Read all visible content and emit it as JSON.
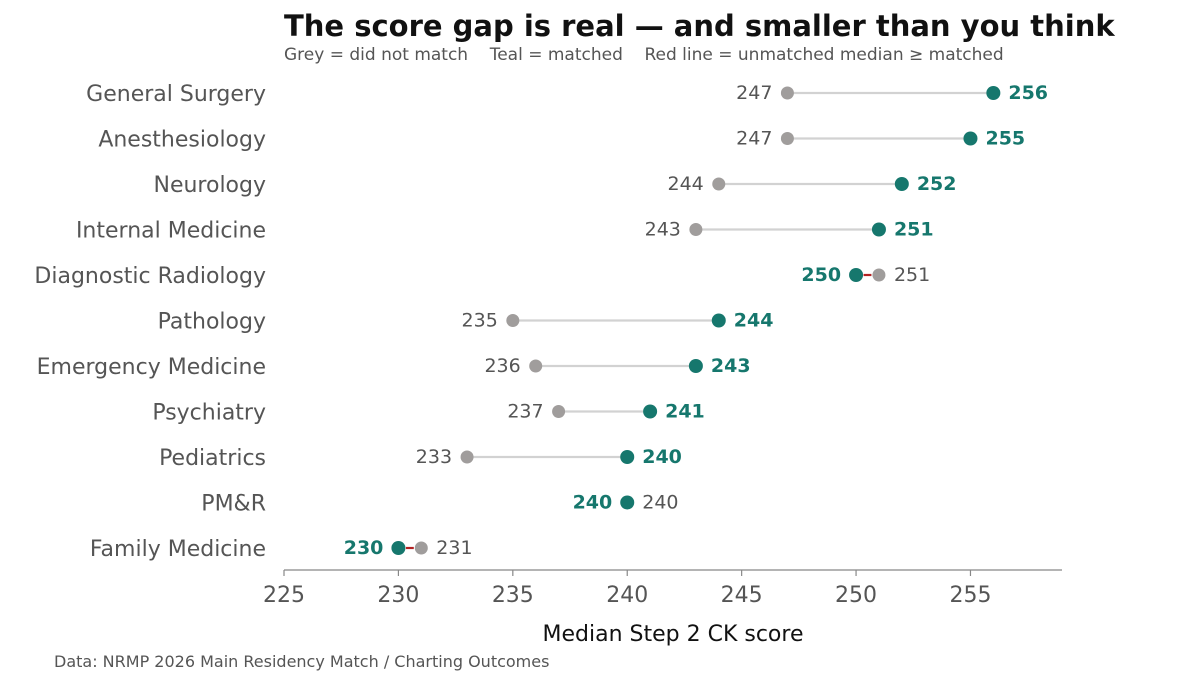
{
  "chart_data": {
    "type": "dumbbell",
    "title": "The score gap is real — and smaller than you think",
    "subtitle": "Grey = did not match    Teal = matched    Red line = unmatched median ≥ matched",
    "xlabel": "Median Step 2 CK score",
    "ylabel": "",
    "xlim": [
      225,
      259
    ],
    "xticks": [
      225,
      230,
      235,
      240,
      245,
      250,
      255
    ],
    "grid": false,
    "legend": "none",
    "source": "Data: NRMP 2026 Main Residency Match / Charting Outcomes",
    "categories": [
      "General Surgery",
      "Anesthesiology",
      "Neurology",
      "Internal Medicine",
      "Diagnostic Radiology",
      "Pathology",
      "Emergency Medicine",
      "Psychiatry",
      "Pediatrics",
      "PM&R",
      "Family Medicine"
    ],
    "series": [
      {
        "name": "did not match",
        "values": [
          247,
          247,
          244,
          243,
          251,
          235,
          236,
          237,
          233,
          240,
          231
        ]
      },
      {
        "name": "matched",
        "values": [
          256,
          255,
          252,
          251,
          250,
          244,
          243,
          241,
          240,
          240,
          230
        ]
      }
    ],
    "colors": {
      "unmatched": "#a09d9c",
      "matched": "#16776d",
      "connector": "#d2d2d2",
      "reversed_connector": "#b22222",
      "axis": "#888888"
    }
  }
}
